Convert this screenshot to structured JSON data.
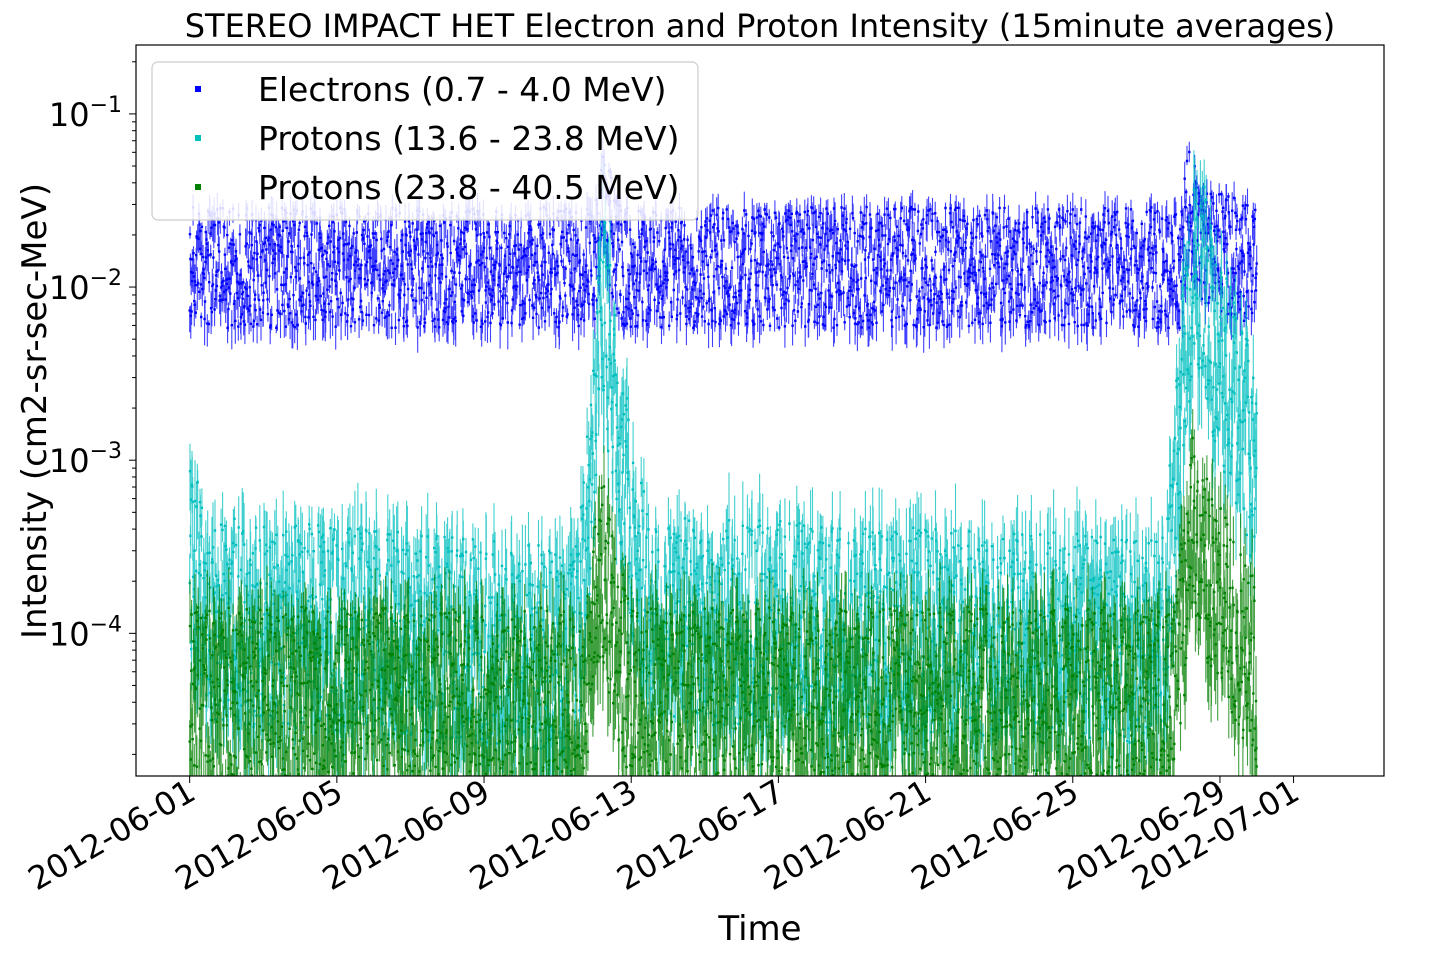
{
  "chart_data": {
    "type": "scatter",
    "title": "STEREO IMPACT HET Electron and Proton Intensity (15minute averages)",
    "xlabel": "Time",
    "ylabel": "Intensity (cm2-sr-sec-MeV)",
    "yscale": "log",
    "ylim": [
      1.5e-05,
      0.25
    ],
    "xlim": [
      "2012-05-30T13:00",
      "2012-07-03T11:00"
    ],
    "xticks": [
      "2012-06-01",
      "2012-06-05",
      "2012-06-09",
      "2012-06-13",
      "2012-06-17",
      "2012-06-21",
      "2012-06-25",
      "2012-06-29",
      "2012-07-01"
    ],
    "yticks": [
      {
        "value": 0.1,
        "base": "10",
        "exp": "−1"
      },
      {
        "value": 0.01,
        "base": "10",
        "exp": "−2"
      },
      {
        "value": 0.001,
        "base": "10",
        "exp": "−3"
      },
      {
        "value": 0.0001,
        "base": "10",
        "exp": "−4"
      }
    ],
    "grid": false,
    "legend_position": "top-left",
    "series": [
      {
        "name": "Electrons (0.7 - 4.0 MeV)",
        "color": "#0000ff",
        "profile": [
          [
            "2012-06-01T00:00",
            0.013
          ],
          [
            "2012-06-12T00:00",
            0.013
          ],
          [
            "2012-06-12T06:00",
            0.028
          ],
          [
            "2012-06-12T18:00",
            0.013
          ],
          [
            "2012-06-28T00:00",
            0.013
          ],
          [
            "2012-06-28T02:00",
            0.03
          ],
          [
            "2012-06-28T12:00",
            0.018
          ],
          [
            "2012-06-30T00:00",
            0.013
          ]
        ]
      },
      {
        "name": "Protons (13.6 - 23.8 MeV)",
        "color": "#00bfbf",
        "profile": [
          [
            "2012-06-01T00:00",
            0.00035
          ],
          [
            "2012-06-01T12:00",
            0.00012
          ],
          [
            "2012-06-11T12:00",
            8e-05
          ],
          [
            "2012-06-11T20:00",
            0.0004
          ],
          [
            "2012-06-12T02:00",
            0.003
          ],
          [
            "2012-06-12T05:00",
            0.012
          ],
          [
            "2012-06-12T08:00",
            0.005
          ],
          [
            "2012-06-12T14:00",
            0.002
          ],
          [
            "2012-06-13T00:00",
            0.0004
          ],
          [
            "2012-06-13T12:00",
            0.00012
          ],
          [
            "2012-06-27T12:00",
            9e-05
          ],
          [
            "2012-06-27T20:00",
            0.001
          ],
          [
            "2012-06-28T04:00",
            0.008
          ],
          [
            "2012-06-28T12:00",
            0.012
          ],
          [
            "2012-06-28T20:00",
            0.005
          ],
          [
            "2012-06-29T12:00",
            0.002
          ],
          [
            "2012-06-30T00:00",
            0.0008
          ]
        ]
      },
      {
        "name": "Protons (23.8 - 40.5 MeV)",
        "color": "#008000",
        "profile": [
          [
            "2012-06-01T00:00",
            4e-05
          ],
          [
            "2012-06-11T18:00",
            4e-05
          ],
          [
            "2012-06-12T04:00",
            0.00025
          ],
          [
            "2012-06-12T12:00",
            0.00012
          ],
          [
            "2012-06-13T00:00",
            4e-05
          ],
          [
            "2012-06-27T18:00",
            4e-05
          ],
          [
            "2012-06-28T06:00",
            0.0004
          ],
          [
            "2012-06-28T18:00",
            0.0002
          ],
          [
            "2012-06-30T00:00",
            6e-05
          ]
        ]
      }
    ]
  }
}
